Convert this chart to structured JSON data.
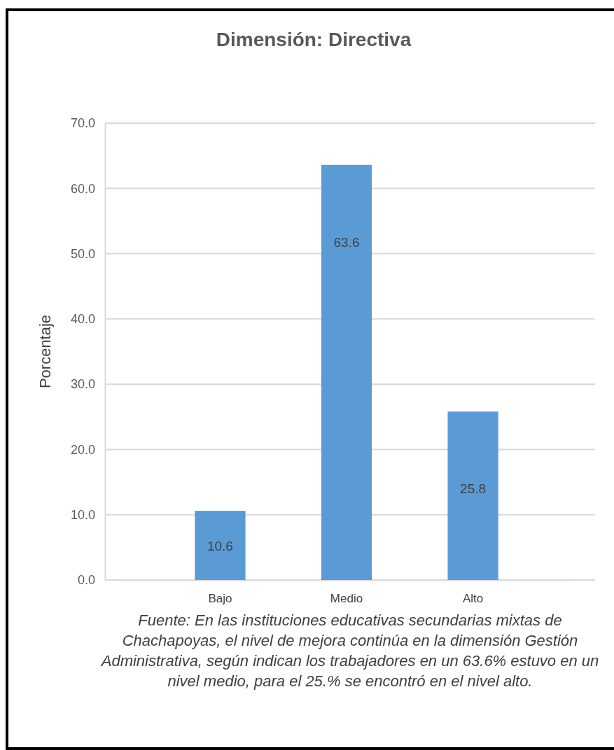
{
  "chart_data": {
    "type": "bar",
    "title": "Dimensión: Directiva",
    "ylabel": "Porcentaje",
    "categories": [
      "Bajo",
      "Medio",
      "Alto"
    ],
    "values": [
      10.6,
      63.6,
      25.8
    ],
    "color": "#5b9bd5",
    "ylim": [
      0,
      70
    ],
    "yticks": [
      {
        "value": 0,
        "label": "0.0"
      },
      {
        "value": 10,
        "label": "10.0"
      },
      {
        "value": 20,
        "label": "20.0"
      },
      {
        "value": 30,
        "label": "30.0"
      },
      {
        "value": 40,
        "label": "40.0"
      },
      {
        "value": 50,
        "label": "50.0"
      },
      {
        "value": 60,
        "label": "60.0"
      },
      {
        "value": 70,
        "label": "70.0"
      }
    ],
    "grid": "y",
    "data_labels": true,
    "annotations": [
      "Fuente: En las instituciones educativas secundarias mixtas de Chachapoyas, el nivel de mejora continúa en la dimensión Gestión Administrativa, según indican los trabajadores en un 63.6% estuvo en un nivel medio, para el 25.% se encontró en el nivel alto."
    ]
  }
}
